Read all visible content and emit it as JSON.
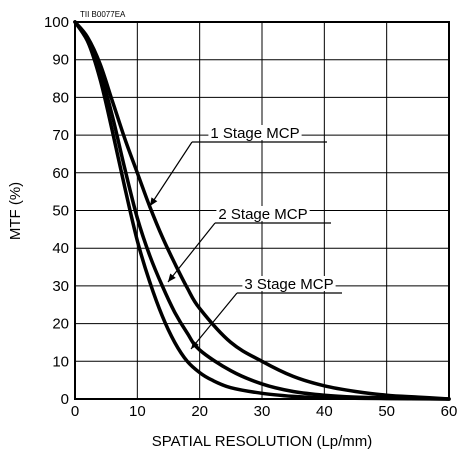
{
  "chart_data": {
    "type": "line",
    "code": "TII B0077EA",
    "xlabel": "SPATIAL RESOLUTION (Lp/mm)",
    "ylabel": "MTF (%)",
    "xlim": [
      0,
      60
    ],
    "ylim": [
      0,
      100
    ],
    "x_ticks": [
      "0",
      "10",
      "20",
      "30",
      "40",
      "50",
      "60"
    ],
    "y_ticks": [
      "0",
      "10",
      "20",
      "30",
      "40",
      "50",
      "60",
      "70",
      "80",
      "90",
      "100"
    ],
    "grid": true,
    "series": [
      {
        "name": "1 Stage MCP",
        "x": [
          0,
          2,
          4,
          6,
          8,
          10,
          12,
          14,
          16,
          18,
          20,
          25,
          30,
          35,
          40,
          45,
          50,
          55,
          60
        ],
        "y": [
          100,
          96,
          89,
          79,
          69,
          60,
          51,
          43,
          36,
          29.5,
          24,
          15,
          10,
          6,
          3.5,
          2,
          1,
          0.5,
          0
        ]
      },
      {
        "name": "2 Stage MCP",
        "x": [
          0,
          2,
          4,
          6,
          8,
          10,
          12,
          14,
          16,
          18,
          20,
          25,
          30,
          35,
          40,
          45,
          50,
          55,
          60
        ],
        "y": [
          100,
          95,
          87,
          75,
          61,
          48,
          38,
          30,
          23,
          17.5,
          13,
          7.5,
          4,
          2,
          1,
          0.5,
          0.3,
          0.1,
          0
        ]
      },
      {
        "name": "3 Stage MCP",
        "x": [
          0,
          2,
          4,
          6,
          8,
          10,
          12,
          14,
          16,
          18,
          20,
          22,
          25,
          30,
          35,
          40,
          50,
          60
        ],
        "y": [
          100,
          95,
          85,
          71,
          56,
          42,
          31,
          22,
          15,
          10,
          7,
          5,
          3,
          1.5,
          0.7,
          0.3,
          0.1,
          0
        ]
      }
    ],
    "annotations": [
      {
        "label": "1 Stage MCP",
        "series": "1 Stage MCP"
      },
      {
        "label": "2 Stage MCP",
        "series": "2 Stage MCP"
      },
      {
        "label": "3 Stage MCP",
        "series": "3 Stage MCP"
      }
    ]
  }
}
